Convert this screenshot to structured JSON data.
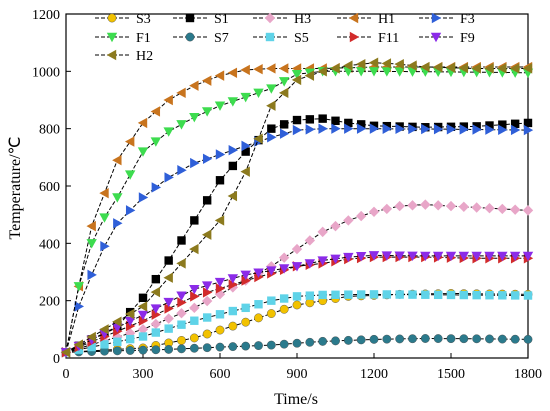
{
  "chart_data": {
    "type": "line",
    "xlabel": "Time/s",
    "ylabel": "Temperature/℃",
    "xlim": [
      0,
      1800
    ],
    "ylim": [
      0,
      1200
    ],
    "xticks": [
      0,
      300,
      600,
      900,
      1200,
      1500,
      1800
    ],
    "yticks": [
      0,
      200,
      400,
      600,
      800,
      1000,
      1200
    ],
    "grid": false,
    "legend_position": "top",
    "series": [
      {
        "name": "S3",
        "color": "#f2c200",
        "marker": "circle",
        "x": [
          0,
          300,
          500,
          700,
          900,
          1100,
          1300,
          1500,
          1800
        ],
        "y": [
          20,
          35,
          70,
          125,
          185,
          215,
          222,
          225,
          222
        ]
      },
      {
        "name": "S1",
        "color": "#000000",
        "marker": "square",
        "x": [
          0,
          200,
          300,
          400,
          500,
          600,
          700,
          800,
          900,
          1000,
          1100,
          1200,
          1400,
          1600,
          1800
        ],
        "y": [
          20,
          110,
          210,
          340,
          480,
          620,
          720,
          800,
          830,
          835,
          820,
          810,
          805,
          808,
          820
        ]
      },
      {
        "name": "H3",
        "color": "#e8a6c8",
        "marker": "diamond",
        "x": [
          0,
          300,
          500,
          700,
          800,
          900,
          1000,
          1100,
          1200,
          1300,
          1400,
          1500,
          1600,
          1800
        ],
        "y": [
          20,
          100,
          175,
          270,
          320,
          380,
          440,
          480,
          510,
          530,
          535,
          530,
          525,
          515
        ]
      },
      {
        "name": "H1",
        "color": "#c8741e",
        "marker": "triangle-left",
        "x": [
          0,
          50,
          100,
          200,
          300,
          400,
          500,
          600,
          700,
          800,
          900,
          1000,
          1200,
          1500,
          1800
        ],
        "y": [
          20,
          250,
          460,
          690,
          820,
          900,
          950,
          985,
          1005,
          1010,
          1010,
          1010,
          1015,
          1015,
          1015
        ]
      },
      {
        "name": "F3",
        "color": "#2f5fd8",
        "marker": "triangle-right",
        "x": [
          0,
          50,
          100,
          150,
          200,
          300,
          400,
          500,
          600,
          700,
          800,
          900,
          1000,
          1200,
          1500,
          1800
        ],
        "y": [
          20,
          180,
          290,
          390,
          470,
          560,
          630,
          680,
          710,
          740,
          770,
          795,
          800,
          800,
          798,
          795
        ]
      },
      {
        "name": "F1",
        "color": "#3ddc4f",
        "marker": "triangle-down",
        "x": [
          0,
          50,
          100,
          150,
          200,
          300,
          400,
          500,
          600,
          700,
          800,
          900,
          1000,
          1100,
          1200,
          1500,
          1800
        ],
        "y": [
          20,
          250,
          400,
          490,
          560,
          720,
          790,
          840,
          880,
          910,
          940,
          990,
          1000,
          1000,
          1000,
          998,
          995
        ]
      },
      {
        "name": "S7",
        "color": "#2b7a8c",
        "marker": "circle",
        "x": [
          0,
          200,
          400,
          600,
          800,
          1000,
          1200,
          1400,
          1600,
          1800
        ],
        "y": [
          20,
          25,
          30,
          38,
          45,
          58,
          65,
          68,
          67,
          65
        ]
      },
      {
        "name": "S5",
        "color": "#5fd3e8",
        "marker": "square",
        "x": [
          0,
          300,
          500,
          700,
          800,
          900,
          1000,
          1200,
          1500,
          1800
        ],
        "y": [
          20,
          75,
          130,
          175,
          200,
          215,
          220,
          222,
          220,
          218
        ]
      },
      {
        "name": "F11",
        "color": "#d22b2b",
        "marker": "triangle-right",
        "x": [
          0,
          300,
          500,
          700,
          900,
          1000,
          1100,
          1200,
          1400,
          1600,
          1800
        ],
        "y": [
          20,
          130,
          215,
          270,
          320,
          330,
          345,
          352,
          352,
          348,
          348
        ]
      },
      {
        "name": "F9",
        "color": "#8b2be8",
        "marker": "triangle-down",
        "x": [
          0,
          300,
          500,
          700,
          900,
          1000,
          1100,
          1200,
          1400,
          1600,
          1800
        ],
        "y": [
          20,
          150,
          240,
          290,
          320,
          340,
          352,
          358,
          356,
          356,
          356
        ]
      },
      {
        "name": "H2",
        "color": "#8c7a1e",
        "marker": "triangle-left",
        "x": [
          0,
          300,
          400,
          500,
          600,
          700,
          800,
          900,
          1000,
          1100,
          1200,
          1300,
          1400,
          1600,
          1800
        ],
        "y": [
          20,
          180,
          280,
          380,
          480,
          650,
          880,
          970,
          1000,
          1020,
          1030,
          1025,
          1015,
          1010,
          1010
        ]
      }
    ]
  }
}
